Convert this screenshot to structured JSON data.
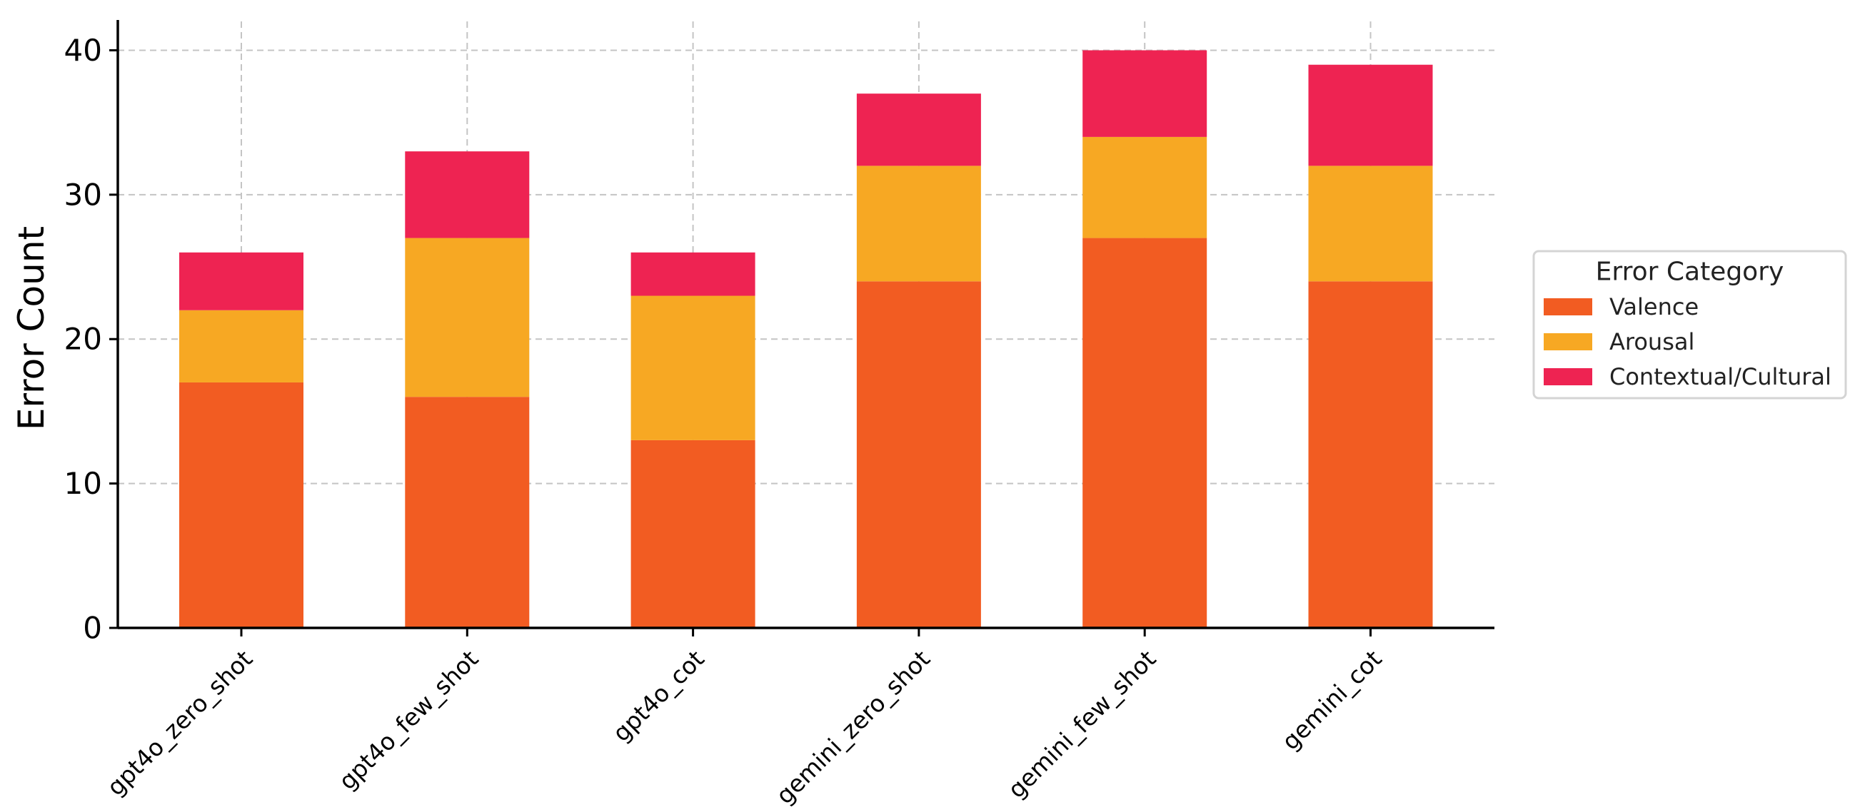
{
  "chart_data": {
    "type": "bar",
    "stacked": true,
    "title": "",
    "xlabel": "",
    "ylabel": "Error Count",
    "ylim": [
      0,
      42
    ],
    "yticks": [
      0,
      10,
      20,
      30,
      40
    ],
    "grid": true,
    "categories": [
      "gpt4o_zero_shot",
      "gpt4o_few_shot",
      "gpt4o_cot",
      "gemini_zero_shot",
      "gemini_few_shot",
      "gemini_cot"
    ],
    "series": [
      {
        "name": "Valence",
        "color": "#f25c22",
        "values": [
          17,
          16,
          13,
          24,
          27,
          24
        ]
      },
      {
        "name": "Arousal",
        "color": "#f7a823",
        "values": [
          5,
          11,
          10,
          8,
          7,
          8
        ]
      },
      {
        "name": "Contextual/Cultural",
        "color": "#ee2352",
        "values": [
          4,
          6,
          3,
          5,
          6,
          7
        ]
      }
    ],
    "legend": {
      "title": "Error Category",
      "placement": "center-right, outside"
    }
  }
}
